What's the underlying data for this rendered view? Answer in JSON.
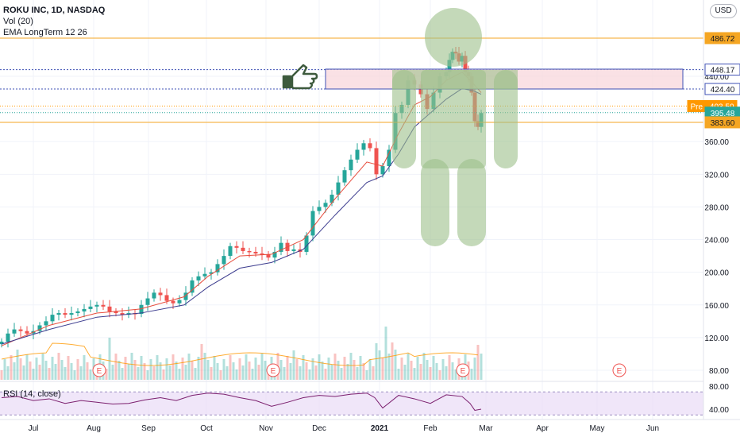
{
  "legend": {
    "symbol_line": "ROKU INC, 1D, NASDAQ",
    "volume_line": "Vol (20)",
    "ema_line": "EMA LongTerm 12 26"
  },
  "currency_button": "USD",
  "rsi_label": "RSI (14, close)",
  "colors": {
    "up": "#26a69a",
    "down": "#ef5350",
    "ema_fast": "#e74c3c",
    "ema_slow": "#3d3d8f",
    "level_line": "#f5a623",
    "accent_orange": "#ff9800",
    "teal_label": "#26a69a",
    "rsi_line": "#7b1f6e",
    "rsi_band": "#e9dcf7",
    "figure_green": "#9cc08a",
    "box_fill": "#f8d7dc",
    "box_stroke": "#3f51b5"
  },
  "chart_data": {
    "type": "candlestick",
    "title": "ROKU INC, 1D, NASDAQ",
    "price_axis": {
      "ticks": [
        80,
        120,
        160,
        200,
        240,
        280,
        320,
        360,
        400,
        440
      ],
      "min": 72,
      "max": 505
    },
    "x_axis_labels": [
      "Jul",
      "Aug",
      "Sep",
      "Oct",
      "Nov",
      "Dec",
      "2021",
      "Feb",
      "Mar",
      "Apr",
      "May",
      "Jun"
    ],
    "price_series": [
      [
        0,
        115
      ],
      [
        8,
        125
      ],
      [
        16,
        130
      ],
      [
        24,
        128
      ],
      [
        32,
        125
      ],
      [
        40,
        128
      ],
      [
        48,
        135
      ],
      [
        56,
        140
      ],
      [
        64,
        148
      ],
      [
        72,
        150
      ],
      [
        80,
        148
      ],
      [
        88,
        150
      ],
      [
        96,
        152
      ],
      [
        104,
        155
      ],
      [
        112,
        158
      ],
      [
        120,
        160
      ],
      [
        128,
        158
      ],
      [
        136,
        152
      ],
      [
        144,
        150
      ],
      [
        152,
        148
      ],
      [
        160,
        150
      ],
      [
        168,
        149
      ],
      [
        176,
        160
      ],
      [
        184,
        168
      ],
      [
        192,
        175
      ],
      [
        200,
        172
      ],
      [
        208,
        165
      ],
      [
        216,
        162
      ],
      [
        224,
        166
      ],
      [
        232,
        175
      ],
      [
        240,
        190
      ],
      [
        248,
        195
      ],
      [
        256,
        198
      ],
      [
        264,
        200
      ],
      [
        272,
        210
      ],
      [
        280,
        220
      ],
      [
        288,
        232
      ],
      [
        296,
        230
      ],
      [
        304,
        226
      ],
      [
        312,
        225
      ],
      [
        320,
        223
      ],
      [
        328,
        222
      ],
      [
        336,
        218
      ],
      [
        344,
        225
      ],
      [
        352,
        236
      ],
      [
        360,
        226
      ],
      [
        368,
        228
      ],
      [
        376,
        225
      ],
      [
        384,
        245
      ],
      [
        392,
        275
      ],
      [
        400,
        280
      ],
      [
        408,
        285
      ],
      [
        416,
        295
      ],
      [
        424,
        310
      ],
      [
        432,
        325
      ],
      [
        440,
        338
      ],
      [
        448,
        350
      ],
      [
        456,
        358
      ],
      [
        464,
        352
      ],
      [
        472,
        320
      ],
      [
        480,
        330
      ],
      [
        488,
        350
      ],
      [
        496,
        395
      ],
      [
        504,
        405
      ],
      [
        512,
        435
      ],
      [
        520,
        430
      ],
      [
        528,
        418
      ],
      [
        536,
        400
      ],
      [
        544,
        420
      ],
      [
        552,
        440
      ],
      [
        560,
        445
      ],
      [
        564,
        460
      ],
      [
        568,
        470
      ],
      [
        572,
        468
      ],
      [
        576,
        458
      ],
      [
        580,
        465
      ],
      [
        584,
        445
      ],
      [
        588,
        440
      ],
      [
        592,
        420
      ],
      [
        596,
        385
      ],
      [
        600,
        378
      ],
      [
        604,
        395
      ]
    ],
    "ema_fast": [
      [
        0,
        110
      ],
      [
        60,
        135
      ],
      [
        120,
        150
      ],
      [
        175,
        155
      ],
      [
        230,
        170
      ],
      [
        260,
        195
      ],
      [
        300,
        220
      ],
      [
        340,
        222
      ],
      [
        380,
        240
      ],
      [
        420,
        290
      ],
      [
        460,
        335
      ],
      [
        480,
        330
      ],
      [
        500,
        370
      ],
      [
        520,
        405
      ],
      [
        540,
        415
      ],
      [
        560,
        435
      ],
      [
        580,
        445
      ],
      [
        595,
        430
      ],
      [
        604,
        420
      ]
    ],
    "ema_slow": [
      [
        0,
        112
      ],
      [
        60,
        130
      ],
      [
        120,
        145
      ],
      [
        175,
        150
      ],
      [
        230,
        160
      ],
      [
        260,
        182
      ],
      [
        300,
        205
      ],
      [
        340,
        212
      ],
      [
        380,
        228
      ],
      [
        420,
        270
      ],
      [
        460,
        310
      ],
      [
        480,
        318
      ],
      [
        500,
        345
      ],
      [
        520,
        378
      ],
      [
        540,
        395
      ],
      [
        560,
        412
      ],
      [
        580,
        425
      ],
      [
        595,
        422
      ],
      [
        604,
        418
      ]
    ],
    "levels": [
      {
        "price": 486.72,
        "label": "486.72",
        "style": "orange"
      },
      {
        "price": 448.17,
        "label": "448.17",
        "style": "blue"
      },
      {
        "price": 424.4,
        "label": "424.40",
        "style": "blue"
      },
      {
        "price": 403.5,
        "label": "Pre · 403.50",
        "style": "pre"
      },
      {
        "price": 395.48,
        "label": "395.48",
        "style": "teal"
      },
      {
        "price": 383.6,
        "label": "383.60",
        "style": "orange"
      }
    ],
    "earnings_markers": [
      {
        "x": 125,
        "label": "E"
      },
      {
        "x": 344,
        "label": "E"
      },
      {
        "x": 583,
        "label": "E"
      },
      {
        "x": 780,
        "label": "E"
      }
    ],
    "rsi": {
      "ticks": [
        40,
        80
      ],
      "labels": [
        "40.00",
        "80.00"
      ],
      "upper": 70,
      "lower": 30,
      "values": [
        [
          0,
          60
        ],
        [
          20,
          62
        ],
        [
          40,
          55
        ],
        [
          60,
          58
        ],
        [
          80,
          50
        ],
        [
          100,
          55
        ],
        [
          120,
          52
        ],
        [
          140,
          49
        ],
        [
          160,
          50
        ],
        [
          180,
          56
        ],
        [
          200,
          60
        ],
        [
          220,
          55
        ],
        [
          240,
          64
        ],
        [
          260,
          68
        ],
        [
          280,
          66
        ],
        [
          300,
          60
        ],
        [
          320,
          55
        ],
        [
          340,
          45
        ],
        [
          360,
          52
        ],
        [
          380,
          60
        ],
        [
          400,
          64
        ],
        [
          420,
          62
        ],
        [
          440,
          66
        ],
        [
          460,
          68
        ],
        [
          470,
          60
        ],
        [
          480,
          42
        ],
        [
          500,
          64
        ],
        [
          520,
          58
        ],
        [
          540,
          50
        ],
        [
          560,
          65
        ],
        [
          580,
          62
        ],
        [
          590,
          50
        ],
        [
          596,
          38
        ],
        [
          604,
          40
        ]
      ]
    }
  }
}
